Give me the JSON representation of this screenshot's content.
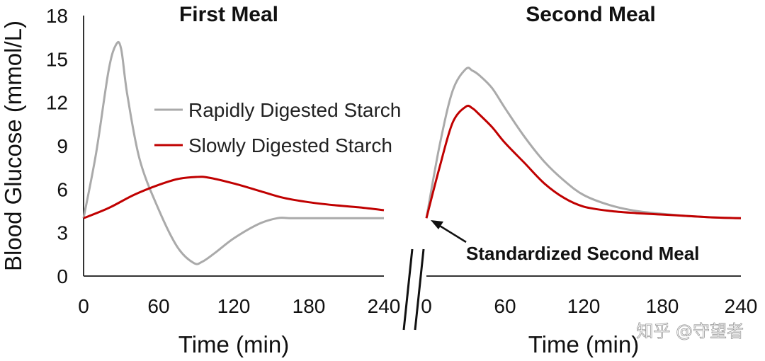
{
  "chart_data": [
    {
      "type": "line",
      "title": "First Meal",
      "xlabel": "Time (min)",
      "ylabel": "Blood Glucose (mmol/L)",
      "xlim": [
        0,
        240
      ],
      "ylim": [
        0,
        18
      ],
      "xticks": [
        0,
        60,
        120,
        180,
        240
      ],
      "yticks": [
        0,
        3,
        6,
        9,
        12,
        15,
        18
      ],
      "legend": "center-right",
      "series": [
        {
          "name": "Rapidly Digested Starch",
          "color": "#aaaaaa",
          "x": [
            0,
            10,
            20,
            26,
            30,
            35,
            45,
            60,
            75,
            88,
            95,
            105,
            120,
            140,
            155,
            165,
            180,
            200,
            240
          ],
          "y": [
            4.0,
            8.5,
            14.2,
            16.0,
            15.7,
            12.5,
            8.0,
            4.6,
            2.0,
            0.9,
            1.0,
            1.6,
            2.6,
            3.6,
            4.0,
            4.0,
            4.0,
            4.0,
            4.0
          ]
        },
        {
          "name": "Slowly Digested Starch",
          "color": "#c00000",
          "x": [
            0,
            20,
            40,
            60,
            75,
            90,
            100,
            120,
            140,
            160,
            180,
            200,
            220,
            240
          ],
          "y": [
            4.0,
            4.7,
            5.6,
            6.3,
            6.7,
            6.85,
            6.8,
            6.4,
            5.9,
            5.4,
            5.1,
            4.9,
            4.75,
            4.55
          ]
        }
      ]
    },
    {
      "type": "line",
      "title": "Second Meal",
      "xlabel": "Time (min)",
      "xlim": [
        0,
        240
      ],
      "ylim": [
        0,
        18
      ],
      "xticks": [
        0,
        60,
        120,
        180,
        240
      ],
      "annotation": "Standardized Second Meal",
      "series": [
        {
          "name": "Rapidly Digested Starch",
          "color": "#aaaaaa",
          "x": [
            0,
            10,
            20,
            30,
            35,
            40,
            50,
            60,
            75,
            90,
            105,
            120,
            140,
            160,
            180,
            200,
            220,
            240
          ],
          "y": [
            4.0,
            9.0,
            12.8,
            14.3,
            14.2,
            13.9,
            13.0,
            11.6,
            9.6,
            7.9,
            6.6,
            5.6,
            4.9,
            4.5,
            4.3,
            4.15,
            4.05,
            4.0
          ]
        },
        {
          "name": "Slowly Digested Starch",
          "color": "#c00000",
          "x": [
            0,
            10,
            20,
            30,
            35,
            40,
            50,
            60,
            75,
            90,
            105,
            120,
            140,
            160,
            180,
            200,
            220,
            240
          ],
          "y": [
            4.0,
            7.5,
            10.6,
            11.7,
            11.6,
            11.2,
            10.3,
            9.2,
            7.8,
            6.4,
            5.4,
            4.8,
            4.5,
            4.35,
            4.25,
            4.15,
            4.05,
            4.0
          ]
        }
      ]
    }
  ],
  "watermark": "知乎 @守望者"
}
